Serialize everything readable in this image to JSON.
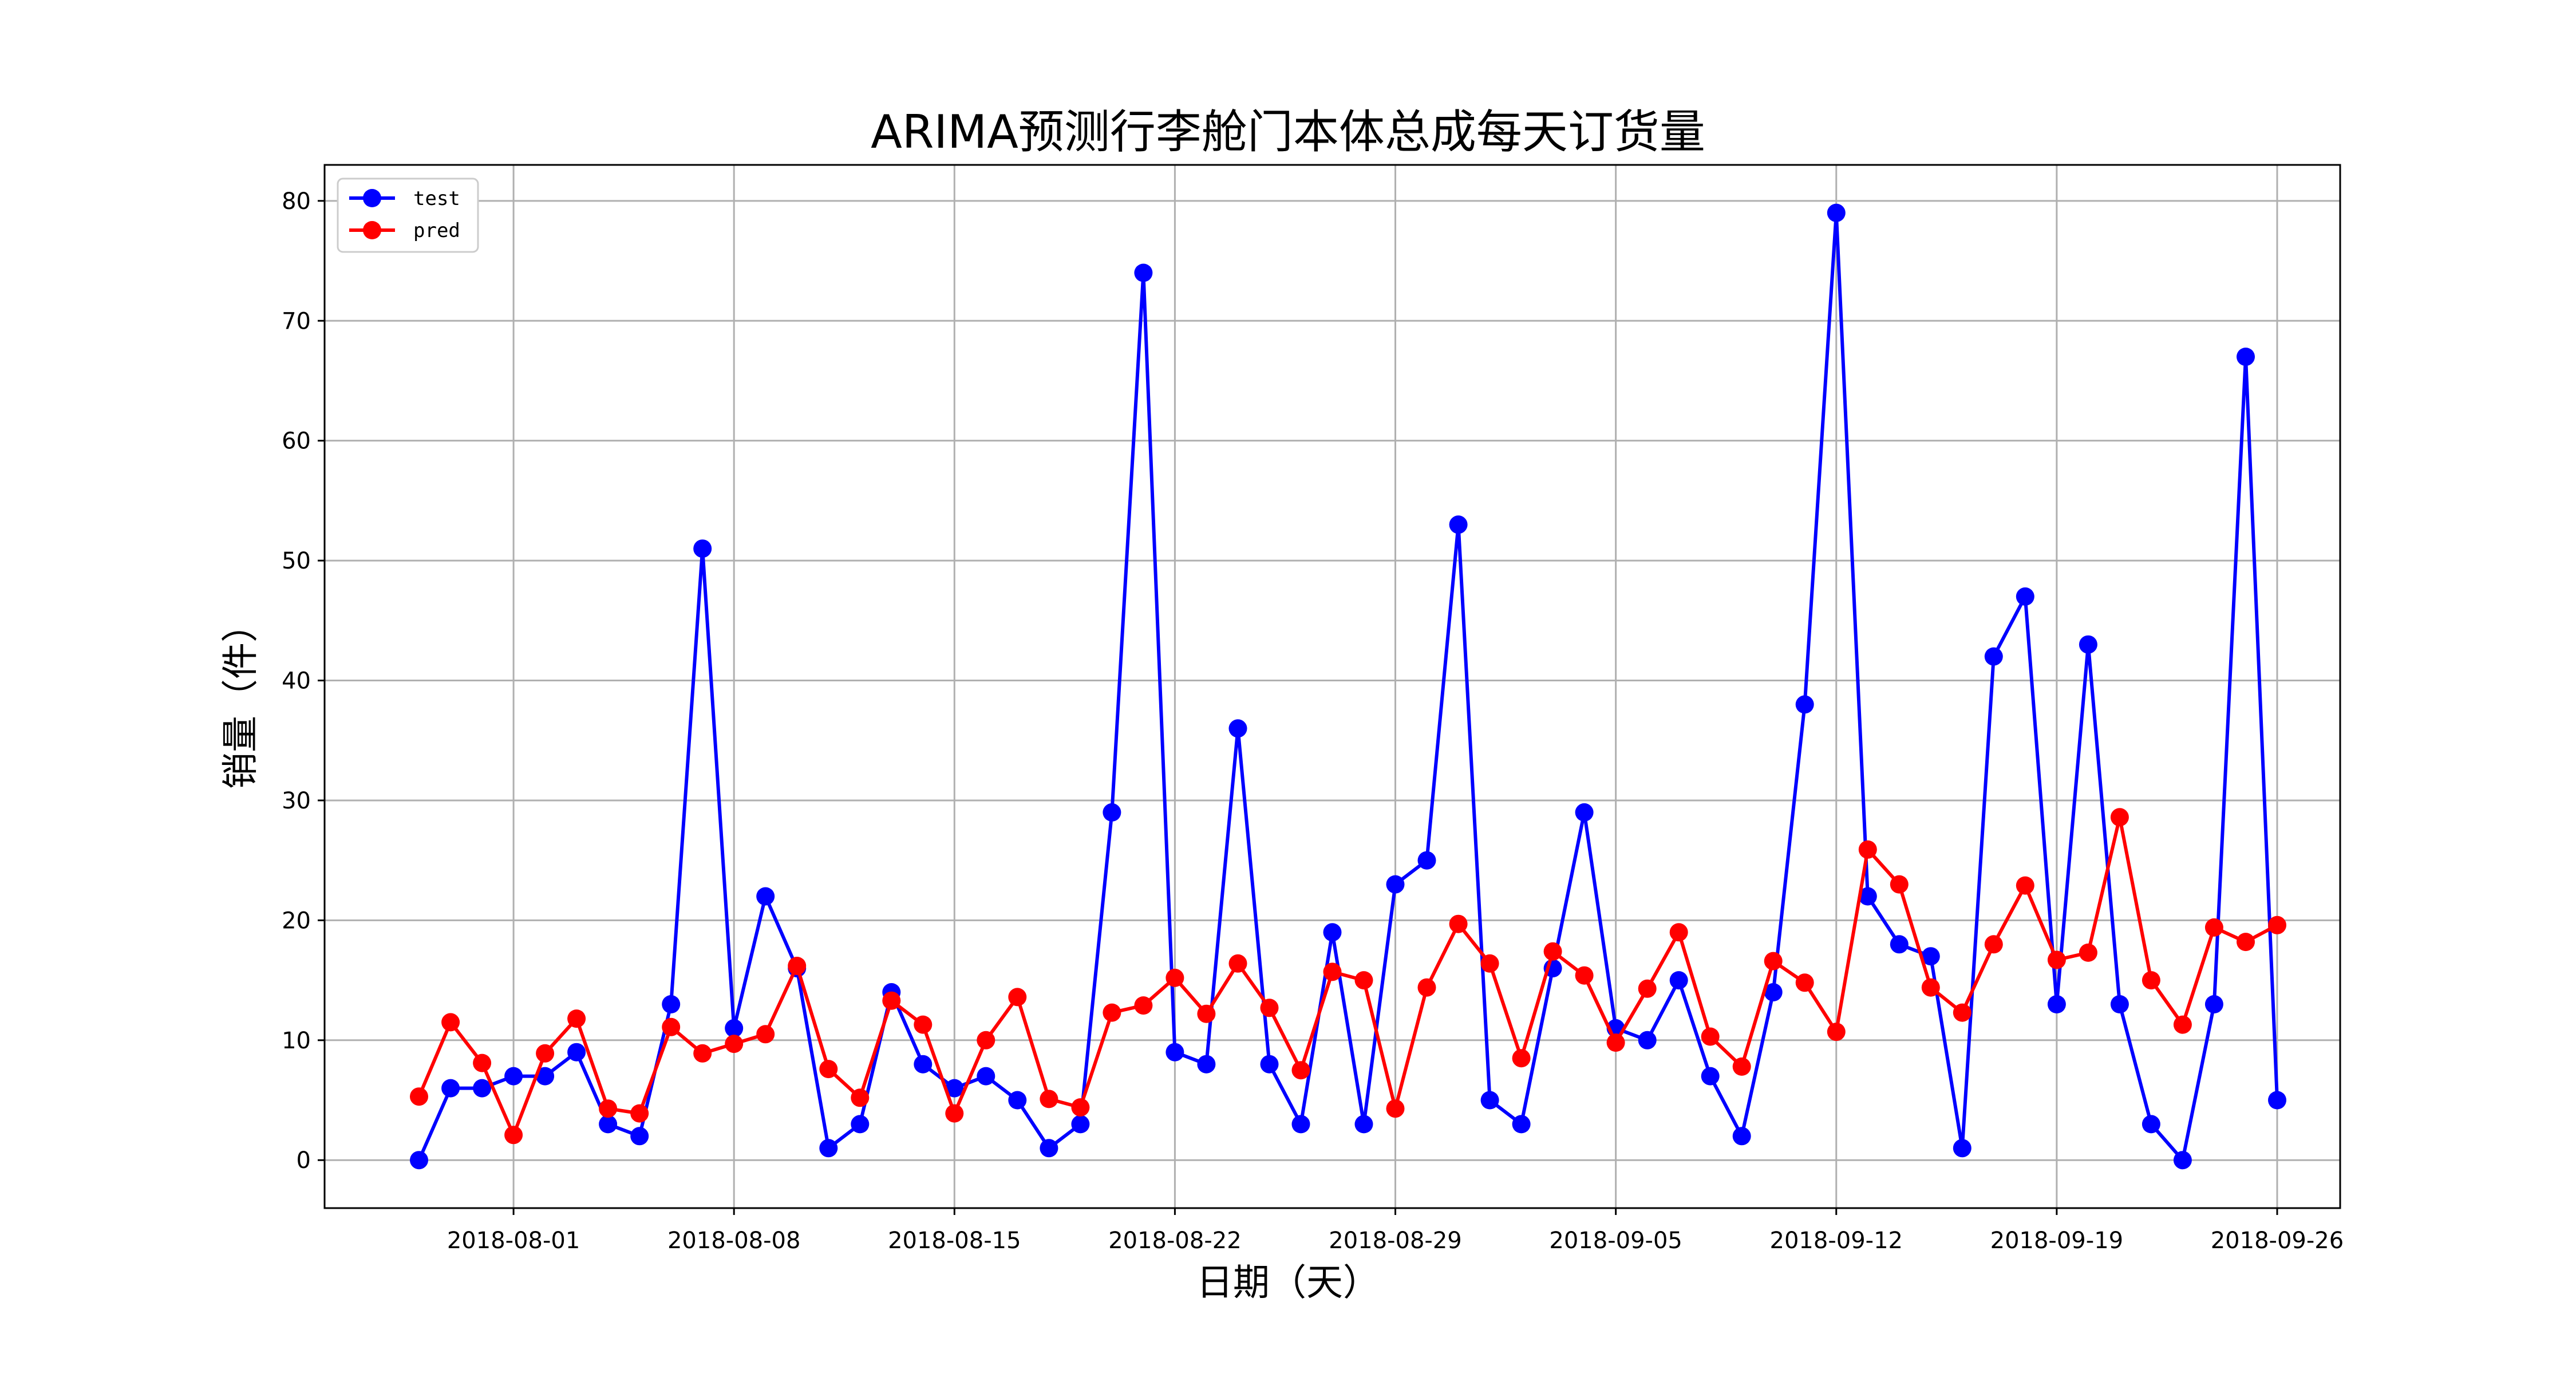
{
  "chart_data": {
    "type": "line",
    "title": "ARIMA预测行李舱门本体总成每天订货量",
    "xlabel": "日期（天）",
    "ylabel": "销量（件）",
    "x_start": "2018-07-29",
    "x_step_days": 1,
    "x_ticks": [
      "2018-08-01",
      "2018-08-08",
      "2018-08-15",
      "2018-08-22",
      "2018-08-29",
      "2018-09-05",
      "2018-09-12",
      "2018-09-19",
      "2018-09-26"
    ],
    "xlim": [
      "2018-07-26",
      "2018-09-28"
    ],
    "y_ticks": [
      0,
      10,
      20,
      30,
      40,
      50,
      60,
      70,
      80
    ],
    "ylim": [
      -4,
      83
    ],
    "grid": true,
    "legend_position": "top-left",
    "series": [
      {
        "name": "test",
        "color": "#0000ff",
        "values": [
          0,
          6,
          6,
          7,
          7,
          9,
          3,
          2,
          13,
          51,
          11,
          22,
          16,
          1,
          3,
          14,
          8,
          6,
          7,
          5,
          1,
          3,
          29,
          74,
          9,
          8,
          36,
          8,
          3,
          19,
          3,
          23,
          25,
          53,
          5,
          3,
          16,
          29,
          11,
          10,
          15,
          7,
          2,
          14,
          38,
          79,
          22,
          18,
          17,
          1,
          42,
          47,
          13,
          43,
          13,
          3,
          0,
          13,
          67,
          5
        ]
      },
      {
        "name": "pred",
        "color": "#ff0000",
        "values": [
          5.3,
          11.5,
          8.1,
          2.1,
          8.9,
          11.8,
          4.3,
          3.9,
          11.1,
          8.9,
          9.7,
          10.5,
          16.2,
          7.6,
          5.2,
          13.3,
          11.3,
          3.9,
          10.0,
          13.6,
          5.1,
          4.4,
          12.3,
          12.9,
          15.2,
          12.2,
          16.4,
          12.7,
          7.5,
          15.7,
          15.0,
          4.3,
          14.4,
          19.7,
          16.4,
          8.5,
          17.4,
          15.4,
          9.8,
          14.3,
          19.0,
          10.3,
          7.8,
          16.6,
          14.8,
          10.7,
          25.9,
          23.0,
          14.4,
          12.3,
          18.0,
          22.9,
          16.7,
          17.3,
          28.6,
          15.0,
          11.3,
          19.4,
          18.2,
          19.6
        ]
      }
    ]
  }
}
